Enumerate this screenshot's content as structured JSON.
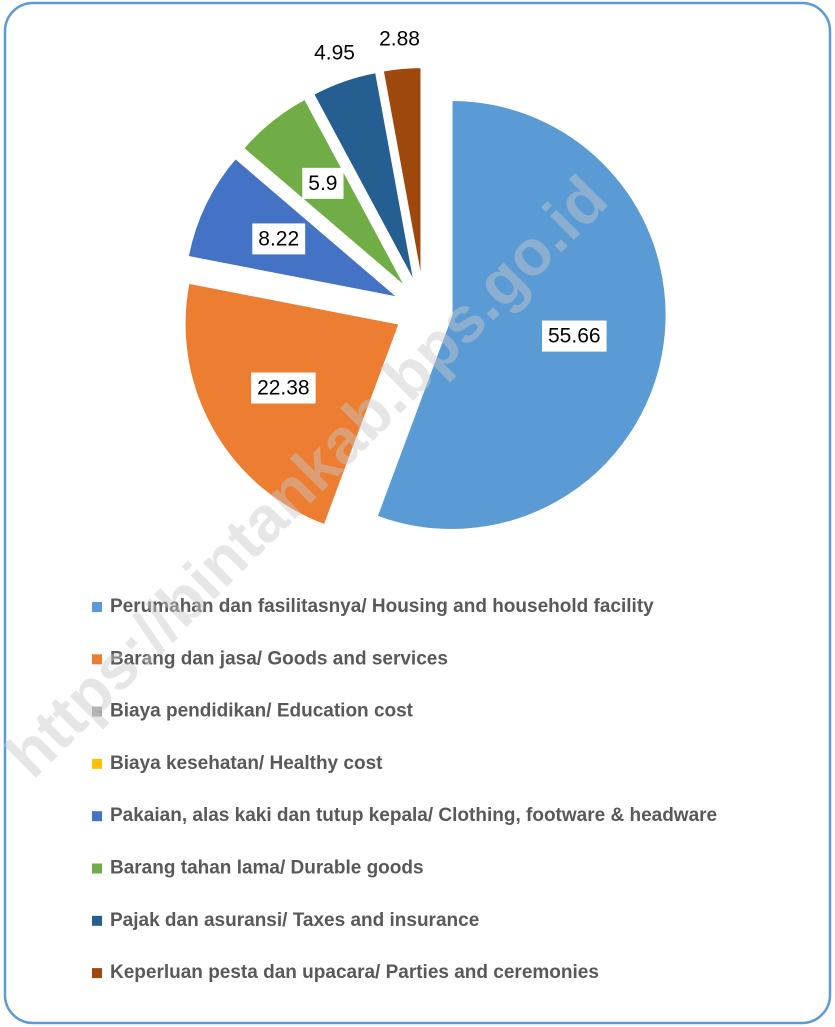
{
  "chart_data": {
    "type": "pie",
    "categories": [
      "Perumahan dan fasilitasnya/ Housing and household facility",
      "Barang dan jasa/ Goods and services",
      "Biaya pendidikan/ Education cost",
      "Biaya kesehatan/ Healthy cost",
      "Pakaian, alas kaki dan tutup kepala/ Clothing, footware & headware",
      "Barang tahan lama/ Durable goods",
      "Pajak dan asuransi/ Taxes and insurance",
      "Keperluan pesta dan upacara/ Parties and ceremonies"
    ],
    "values": [
      55.66,
      22.38,
      0,
      0,
      8.22,
      5.9,
      4.95,
      2.88
    ],
    "colors": [
      "#5b9bd5",
      "#ed7d31",
      "#a5a5a5",
      "#ffc000",
      "#4472c4",
      "#70ad47",
      "#255e91",
      "#9e480e"
    ],
    "legend": "bottom",
    "watermark": "https://bintankab.bps.go.id"
  }
}
